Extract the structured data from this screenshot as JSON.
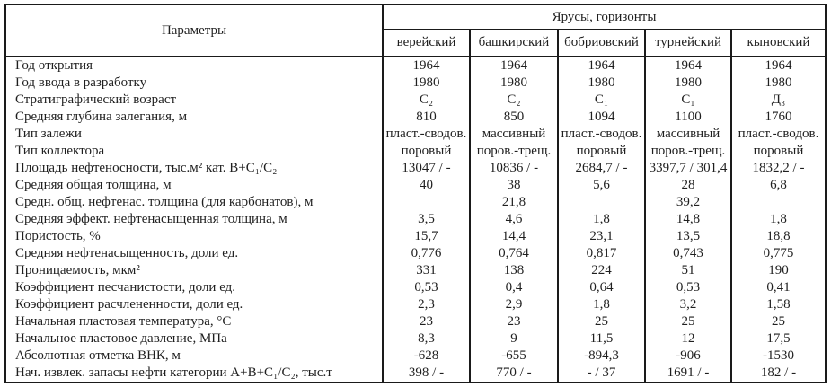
{
  "table": {
    "param_header": "Параметры",
    "group_header": "Ярусы, горизонты",
    "columns": [
      "верейский",
      "башкирский",
      "бобриовский",
      "турнейский",
      "кыновский"
    ],
    "rows": [
      {
        "label": "Год открытия",
        "values": [
          "1964",
          "1964",
          "1964",
          "1964",
          "1964"
        ]
      },
      {
        "label": "Год ввода в разработку",
        "values": [
          "1980",
          "1980",
          "1980",
          "1980",
          "1980"
        ]
      },
      {
        "label": "Стратиграфический возраст",
        "values": [
          "С₂",
          "С₂",
          "С₁",
          "С₁",
          "Д₃"
        ]
      },
      {
        "label": "Средняя глубина залегания, м",
        "values": [
          "810",
          "850",
          "1094",
          "1100",
          "1760"
        ]
      },
      {
        "label": "Тип залежи",
        "values": [
          "пласт.-сводов.",
          "массивный",
          "пласт.-сводов.",
          "массивный",
          "пласт.-сводов."
        ]
      },
      {
        "label": "Тип коллектора",
        "values": [
          "поровый",
          "поров.-трещ.",
          "поровый",
          "поров.-трещ.",
          "поровый"
        ]
      },
      {
        "label": "Площадь нефтеносности, тыс.м²  кат. В+С₁/С₂",
        "values": [
          "13047 / -",
          "10836 / -",
          "2684,7 / -",
          "3397,7 / 301,4",
          "1832,2 / -"
        ]
      },
      {
        "label": "Средняя общая толщина, м",
        "values": [
          "40",
          "38",
          "5,6",
          "28",
          "6,8"
        ]
      },
      {
        "label": "Средн. общ. нефтенас. толщина (для карбонатов), м",
        "values": [
          "",
          "21,8",
          "",
          "39,2",
          ""
        ]
      },
      {
        "label": "Средняя эффект. нефтенасыщенная толщина, м",
        "values": [
          "3,5",
          "4,6",
          "1,8",
          "14,8",
          "1,8"
        ]
      },
      {
        "label": "Пористость, %",
        "values": [
          "15,7",
          "14,4",
          "23,1",
          "13,5",
          "18,8"
        ]
      },
      {
        "label": "Средняя нефтенасыщенность, доли ед.",
        "values": [
          "0,776",
          "0,764",
          "0,817",
          "0,743",
          "0,775"
        ]
      },
      {
        "label": "Проницаемость, мкм²",
        "values": [
          "331",
          "138",
          "224",
          "51",
          "190"
        ]
      },
      {
        "label": "Коэффициент песчанистости, доли ед.",
        "values": [
          "0,53",
          "0,4",
          "0,64",
          "0,53",
          "0,41"
        ]
      },
      {
        "label": "Коэффициент расчлененности, доли ед.",
        "values": [
          "2,3",
          "2,9",
          "1,8",
          "3,2",
          "1,58"
        ]
      },
      {
        "label": "Начальная пластовая температура, °С",
        "values": [
          "23",
          "23",
          "25",
          "25",
          "25"
        ]
      },
      {
        "label": "Начальное пластовое давление, МПа",
        "values": [
          "8,3",
          "9",
          "11,5",
          "12",
          "17,5"
        ]
      },
      {
        "label": "Абсолютная отметка ВНК, м",
        "values": [
          "-628",
          "-655",
          "-894,3",
          "-906",
          "-1530"
        ]
      },
      {
        "label": "Нач. извлек. запасы нефти категории А+В+С₁/С₂, тыс.т",
        "values": [
          "398 / -",
          "770 / -",
          "- / 37",
          "1691 / -",
          "182 / -"
        ]
      }
    ]
  }
}
